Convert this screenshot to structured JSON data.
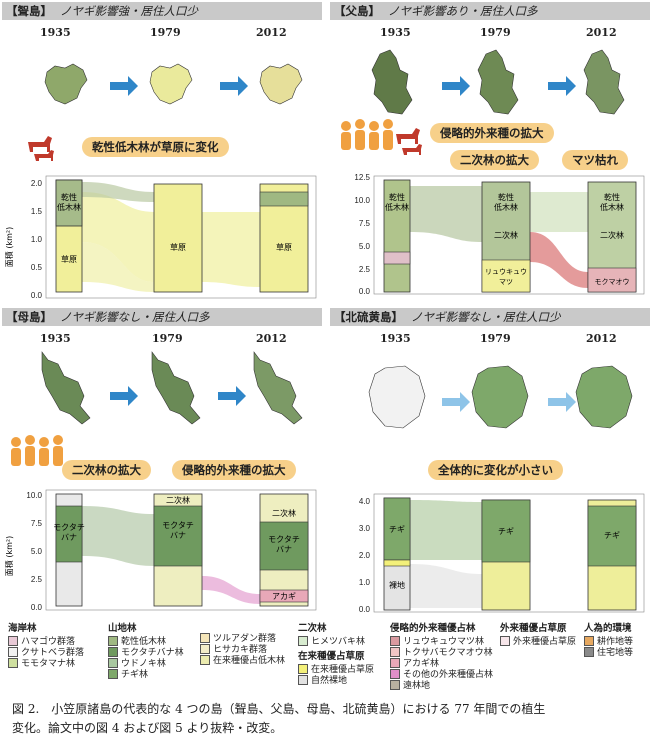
{
  "panels": [
    {
      "title": "【聟島】",
      "subtitle": "ノヤギ影響強・居住人口少",
      "callouts": [
        "乾性低木林が草原に変化"
      ],
      "bar_labels": [
        [
          "乾性",
          "低木林"
        ],
        [
          "草原"
        ],
        [
          "草原"
        ],
        [
          "草原"
        ]
      ]
    },
    {
      "title": "【父島】",
      "subtitle": "ノヤギ影響あり・居住人口多",
      "callouts": [
        "侵略的外来種の拡大",
        "二次林の拡大",
        "マツ枯れ"
      ],
      "bar_labels": [
        [
          "乾性",
          "低木林"
        ],
        [
          "乾性",
          "低木林"
        ],
        [
          "二次林"
        ],
        [
          "リュウキュウ",
          "マツ"
        ],
        [
          "乾性",
          "低木林"
        ],
        [
          "二次林"
        ],
        [
          "モクマオウ"
        ]
      ]
    },
    {
      "title": "【母島】",
      "subtitle": "ノヤギ影響なし・居住人口多",
      "callouts": [
        "二次林の拡大",
        "侵略的外来種の拡大"
      ],
      "bar_labels": [
        [
          "モクタチ",
          "バナ"
        ],
        [
          "二次林"
        ],
        [
          "モクタチ",
          "バナ"
        ],
        [
          "二次林"
        ],
        [
          "モクタチ",
          "バナ"
        ],
        [
          "アカギ"
        ]
      ]
    },
    {
      "title": "【北硫黄島】",
      "subtitle": "ノヤギ影響なし・居住人口少",
      "callouts": [
        "全体的に変化が小さい"
      ],
      "bar_labels": [
        [
          "チギ"
        ],
        [
          "裸地"
        ],
        [
          "チギ"
        ],
        [
          "チギ"
        ]
      ]
    }
  ],
  "years": [
    "1935",
    "1979",
    "2012"
  ],
  "y_axis_label": "面積 (km²)",
  "chart_data": [
    {
      "type": "area",
      "ylim": [
        0,
        2.0
      ],
      "ticks": [
        "0.0",
        "0.5",
        "1.0",
        "1.5",
        "2.0"
      ]
    },
    {
      "type": "area",
      "ylim": [
        0,
        12.5
      ],
      "ticks": [
        "0.0",
        "2.5",
        "5.0",
        "7.5",
        "10.0",
        "12.5"
      ]
    },
    {
      "type": "area",
      "ylim": [
        0,
        10.0
      ],
      "ticks": [
        "0.0",
        "2.5",
        "5.0",
        "7.5",
        "10.0"
      ]
    },
    {
      "type": "area",
      "ylim": [
        0,
        4.0
      ],
      "ticks": [
        "0.0",
        "1.0",
        "2.0",
        "3.0",
        "4.0"
      ]
    }
  ],
  "legend": [
    {
      "title": "海岸林",
      "items": [
        {
          "label": "ハマゴウ群落",
          "color": "#e8c9d6"
        },
        {
          "label": "クサトベラ群落",
          "color": "#f1f1f1"
        },
        {
          "label": "モモタマナ林",
          "color": "#cfe0a0"
        }
      ]
    },
    {
      "title": "山地林",
      "items": [
        {
          "label": "乾性低木林",
          "color": "#9fb882"
        },
        {
          "label": "モクタチバナ林",
          "color": "#6f9a5f"
        },
        {
          "label": "ウドノキ林",
          "color": "#a9c8a0"
        },
        {
          "label": "チギ林",
          "color": "#7ea86a"
        }
      ]
    },
    {
      "title": "",
      "items": [
        {
          "label": "ツルアダン群落",
          "color": "#f4e5b8"
        },
        {
          "label": "ヒサカキ群落",
          "color": "#f2ecc8"
        },
        {
          "label": "在来種優占低木林",
          "color": "#ececb0"
        }
      ]
    },
    {
      "title": "二次林",
      "items": [
        {
          "label": "ヒメツバキ林",
          "color": "#d8ecd0"
        }
      ]
    },
    {
      "title": "在来種優占草原",
      "items": [
        {
          "label": "在来種優占草原",
          "color": "#f3f07a"
        },
        {
          "label": "自然裸地",
          "color": "#e2e2e2"
        }
      ]
    },
    {
      "title": "侵略的外来種優占林",
      "items": [
        {
          "label": "リュウキュウマツ林",
          "color": "#d99aa0"
        },
        {
          "label": "トクサバモクマオウ林",
          "color": "#f0c6c6"
        },
        {
          "label": "アカギ林",
          "color": "#e8a8b8"
        },
        {
          "label": "その他の外来種優占林",
          "color": "#e08fc8"
        },
        {
          "label": "遠林地",
          "color": "#b8b0a0"
        }
      ]
    },
    {
      "title": "外来種優占草原",
      "items": [
        {
          "label": "外来種優占草原",
          "color": "#f7e6ea"
        }
      ]
    },
    {
      "title": "人為的環境",
      "items": [
        {
          "label": "耕作地等",
          "color": "#e6a860"
        },
        {
          "label": "住宅地等",
          "color": "#8a8a8a"
        }
      ]
    }
  ],
  "caption_line1": "図 2.　小笠原諸島の代表的な 4 つの島（聟島、父島、母島、北硫黄島）における 77 年間での植生",
  "caption_line2": "変化。論文中の図 4 および図 5 より抜粋・改変。"
}
